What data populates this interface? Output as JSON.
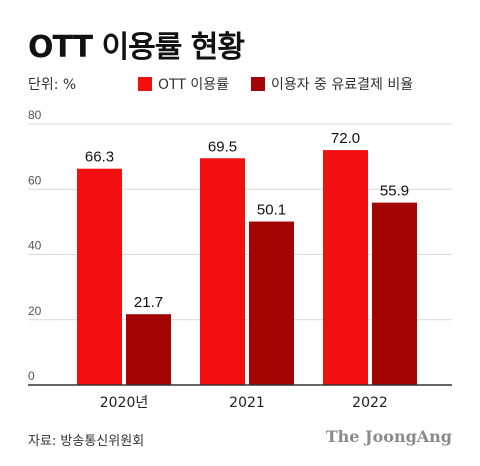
{
  "title": "OTT 이용률 현황",
  "unit_label": "단위: %",
  "source": "자료: 방송통신위원회",
  "brand": "The JoongAng",
  "colors": {
    "series1": "#f20f0f",
    "series2": "#a30505",
    "grid": "#d9d9d9",
    "axis": "#333333"
  },
  "chart_data": {
    "type": "bar",
    "title": "OTT 이용률 현황",
    "categories": [
      "2020년",
      "2021",
      "2022"
    ],
    "series": [
      {
        "name": "OTT 이용률",
        "values": [
          66.3,
          69.5,
          72.0
        ],
        "color": "#f20f0f"
      },
      {
        "name": "이용자 중 유료결제 비율",
        "values": [
          21.7,
          50.1,
          55.9
        ],
        "color": "#a30505"
      }
    ],
    "value_labels": [
      [
        "66.3",
        "69.5",
        "72.0"
      ],
      [
        "21.7",
        "50.1",
        "55.9"
      ]
    ],
    "ylim": [
      0,
      80
    ],
    "yticks": [
      0,
      20,
      40,
      60,
      80
    ],
    "grid": true,
    "legend_position": "top"
  }
}
